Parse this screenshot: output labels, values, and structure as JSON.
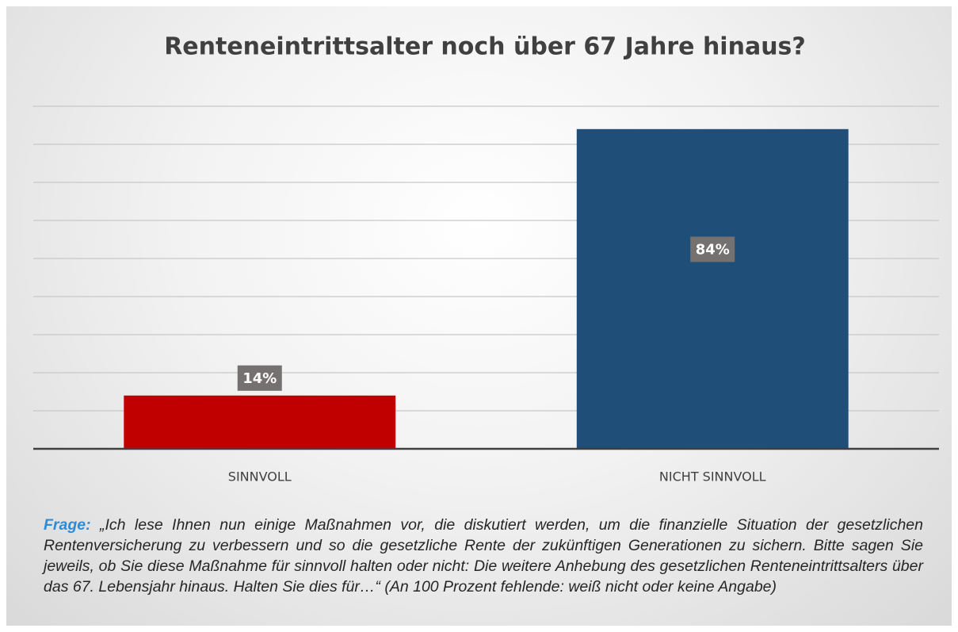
{
  "chart_data": {
    "type": "bar",
    "title": "Renteneintrittsalter noch über 67 Jahre hinaus?",
    "categories": [
      "SINNVOLL",
      "NICHT SINNVOLL"
    ],
    "series": [
      {
        "colors": [
          "#c00000",
          "#1f4e79"
        ],
        "values": [
          14,
          84
        ],
        "value_labels": [
          "14%",
          "84%"
        ]
      }
    ],
    "ylim": [
      0,
      90
    ],
    "yticks": [
      0,
      10,
      20,
      30,
      40,
      50,
      60,
      70,
      80,
      90
    ],
    "grid": true
  },
  "note": {
    "label": "Frage:",
    "text": "„Ich lese Ihnen nun einige Maßnahmen vor, die diskutiert werden, um die finanzielle Situation der gesetzlichen Rentenversicherung zu verbessern und so die gesetzliche Rente der zukünftigen Generationen zu sichern. Bitte sagen Sie jeweils, ob Sie diese Maßnahme für sinnvoll halten oder nicht: Die weitere Anhebung des gesetzlichen Renteneintrittsalters über das 67. Lebensjahr hinaus. Halten Sie dies für…“ (An 100 Prozent fehlende: weiß nicht oder keine Angabe)"
  }
}
